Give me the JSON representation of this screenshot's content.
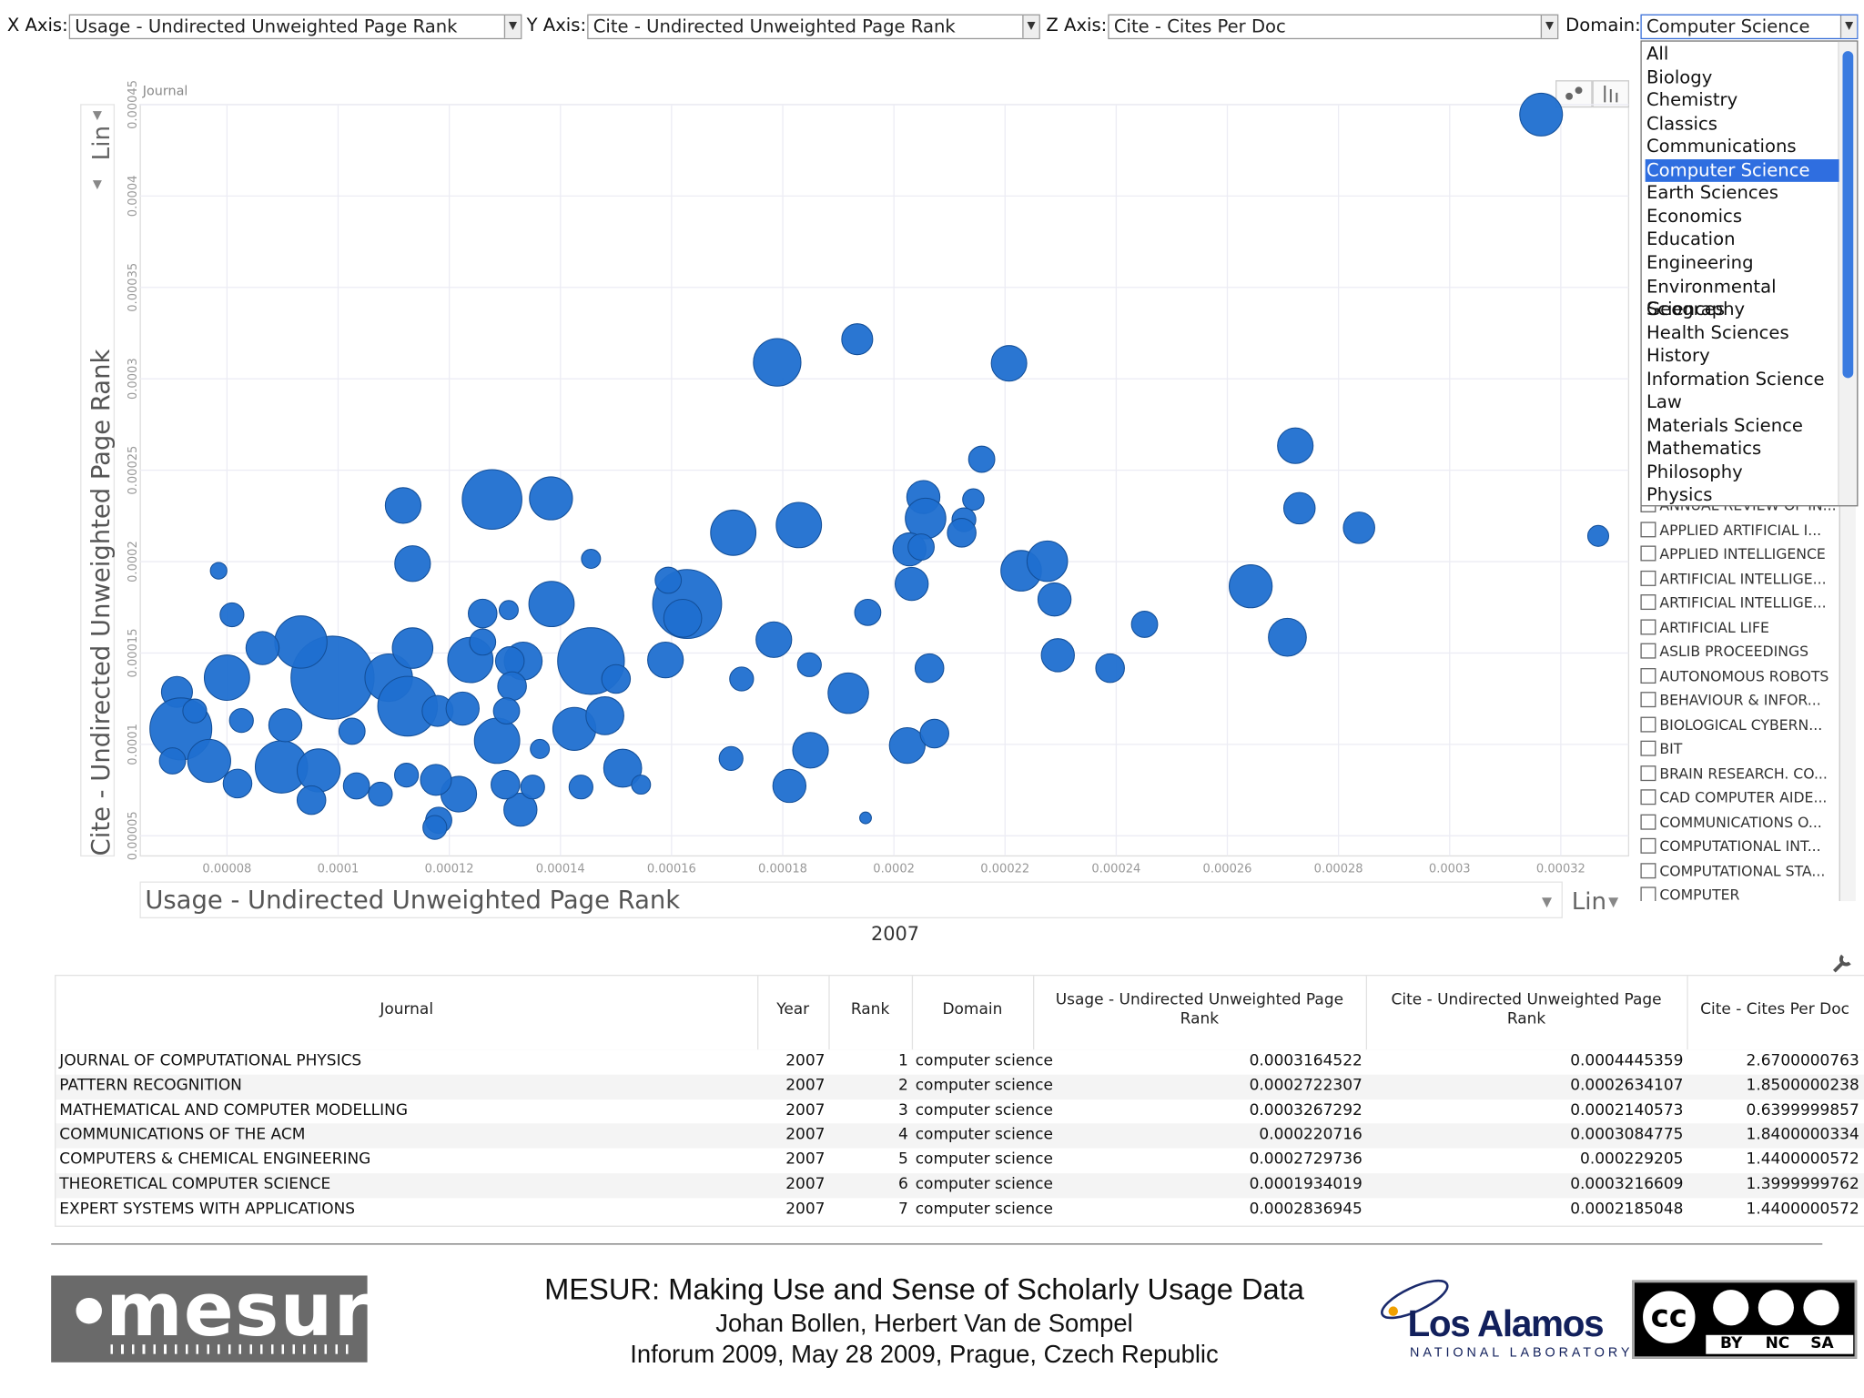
{
  "toolbar": {
    "x_label": "X Axis:",
    "x_value": "Usage - Undirected Unweighted Page Rank",
    "y_label": "Y Axis:",
    "y_value": "Cite - Undirected Unweighted Page Rank",
    "z_label": "Z Axis:",
    "z_value": "Cite - Cites Per Doc",
    "domain_label": "Domain:",
    "domain_value": "Computer Science"
  },
  "domain_dropdown": {
    "items": [
      "All",
      "Biology",
      "Chemistry",
      "Classics",
      "Communications",
      "Computer Science",
      "Earth Sciences",
      "Economics",
      "Education",
      "Engineering",
      "Environmental Sciences",
      "Geography",
      "Health Sciences",
      "History",
      "Information Science",
      "Law",
      "Materials Science",
      "Mathematics",
      "Philosophy",
      "Physics"
    ],
    "selected": 5
  },
  "chart_data": {
    "type": "bubble",
    "legend_title": "Journal",
    "x_label": "Usage - Undirected Unweighted Page Rank",
    "y_label": "Cite - Undirected Unweighted Page Rank",
    "x_scale": "Lin",
    "y_scale": "Lin",
    "year": "2007",
    "color": "#1f6fd0",
    "grid": true,
    "xlim": [
      6.44e-05,
      0.0003322
    ],
    "ylim": [
      3.9e-05,
      0.00045
    ],
    "xticks": [
      8e-05,
      0.0001,
      0.00012,
      0.00014,
      0.00016,
      0.00018,
      0.0002,
      0.00022,
      0.00024,
      0.00026,
      0.00028,
      0.0003,
      0.00032
    ],
    "yticks": [
      5e-05,
      0.0001,
      0.00015,
      0.0002,
      0.00025,
      0.0003,
      0.00035,
      0.0004,
      0.00045
    ],
    "x": [
      0.0003164522,
      0.000179,
      0.0001934019,
      0.000220716,
      0.0001277,
      0.0001383,
      0.0001117,
      0.0002158,
      0.0002722307,
      0.0002729736,
      0.0002836945,
      0.0003267292,
      0.0001829,
      0.0001711,
      0.0002053,
      0.0002057,
      0.0002143,
      0.0002126,
      0.0002122,
      0.0002028,
      0.0002049,
      0.0002032,
      0.0001134,
      7.85e-05,
      0.0001455,
      0.0001628,
      0.0001594,
      0.000162,
      0.0001384,
      0.000126,
      0.0001307,
      8.09e-05,
      0.0002229,
      0.0002276,
      0.0002289,
      0.0002642,
      0.0002451,
      0.0002708,
      0.0001953,
      0.0001784,
      0.0002295,
      0.0002389,
      0.0002064,
      0.0001589,
      0.0001848,
      0.0001726,
      0.0001918,
      0.0001455,
      0.0001333,
      0.0001238,
      0.0001309,
      0.0001313,
      9.9e-05,
      9.33e-05,
      8.64e-05,
      8e-05,
      7.1e-05,
      7.17e-05,
      7.68e-05,
      8.19e-05,
      8.98e-05,
      9.65e-05,
      9.52e-05,
      0.0001033,
      0.0001076,
      0.0001091,
      0.0001134,
      0.0001125,
      0.0001179,
      0.0001224,
      0.0001286,
      0.0001303,
      0.0001425,
      0.000148,
      0.00015,
      0.0001512,
      0.0001545,
      0.0001437,
      0.0001363,
      0.000185,
      0.0001707,
      0.0001812,
      0.0002024,
      0.0002073,
      0.0001949,
      0.0001328,
      0.0001301,
      0.000135,
      0.0001217,
      0.0001176,
      0.0001123,
      0.0001181,
      0.0001174,
      7.02e-05,
      7.42e-05,
      9.05e-05,
      0.0001025,
      0.000126,
      8.26e-05
    ],
    "values": [
      0.0004445359,
      0.000309,
      0.0003216609,
      0.0003084775,
      0.000234,
      0.0002346,
      0.0002307,
      0.000256,
      0.0002634107,
      0.000229205,
      0.0002185048,
      0.0002140573,
      0.00022,
      0.0002158,
      0.0002353,
      0.0002236,
      0.000234,
      0.0002229,
      0.0002158,
      0.0002067,
      0.000208,
      0.0001878,
      0.0001989,
      0.000195,
      0.0002015,
      0.0001768,
      0.0001898,
      0.000169,
      0.0001768,
      0.0001716,
      0.0001735,
      0.0001709,
      0.000195,
      0.0002002,
      0.0001793,
      0.0001865,
      0.0001657,
      0.0001586,
      0.0001722,
      0.0001573,
      0.0001488,
      0.0001417,
      0.0001417,
      0.0001462,
      0.0001436,
      0.0001358,
      0.000128,
      0.0001456,
      0.0001456,
      0.0001462,
      0.0001456,
      0.0001319,
      0.0001365,
      0.000156,
      0.0001527,
      0.0001365,
      0.0001287,
      0.0001085,
      9.1e-05,
      7.86e-05,
      8.77e-05,
      8.58e-05,
      6.95e-05,
      7.73e-05,
      7.28e-05,
      0.0001365,
      0.0001527,
      0.0001209,
      0.0001183,
      0.0001196,
      0.000102,
      0.0001183,
      0.0001085,
      0.0001157,
      0.0001358,
      8.7e-05,
      7.8e-05,
      7.67e-05,
      9.75e-05,
      9.68e-05,
      9.23e-05,
      7.73e-05,
      9.94e-05,
      0.0001059,
      5.98e-05,
      6.43e-05,
      7.8e-05,
      7.67e-05,
      7.28e-05,
      8.06e-05,
      8.32e-05,
      5.85e-05,
      5.46e-05,
      9.1e-05,
      0.0001183,
      0.0001105,
      0.0001072,
      0.000156,
      0.0001131
    ],
    "sizes": [
      2.67,
      3.3,
      1.4,
      1.84,
      5.2,
      2.7,
      1.86,
      1.0,
      1.85,
      1.44,
      1.44,
      0.64,
      3.0,
      3.0,
      1.6,
      2.4,
      0.67,
      0.83,
      1.2,
      1.6,
      1.0,
      1.6,
      1.86,
      0.4,
      0.53,
      6.95,
      1.0,
      2.1,
      3.0,
      1.2,
      0.53,
      0.83,
      2.4,
      2.4,
      1.6,
      2.7,
      1.0,
      2.1,
      1.0,
      1.86,
      1.6,
      1.2,
      1.2,
      1.86,
      0.83,
      0.83,
      2.4,
      6.5,
      2.1,
      3.0,
      1.2,
      1.2,
      10.1,
      4.0,
      1.6,
      3.0,
      1.4,
      5.6,
      2.7,
      1.2,
      4.0,
      2.7,
      1.2,
      1.0,
      0.83,
      3.3,
      2.4,
      5.2,
      1.4,
      1.6,
      3.0,
      1.0,
      2.7,
      2.1,
      1.2,
      2.1,
      0.53,
      0.83,
      0.53,
      1.86,
      0.83,
      1.6,
      1.86,
      1.2,
      0.2,
      1.6,
      1.2,
      0.83,
      1.86,
      1.4,
      0.83,
      1.0,
      0.83,
      1.0,
      0.83,
      1.6,
      1.0,
      1.0,
      0.83
    ]
  },
  "journal_list": [
    "ANNUAL REVIEW OF IN...",
    "APPLIED ARTIFICIAL I...",
    "APPLIED INTELLIGENCE",
    "ARTIFICIAL INTELLIGE...",
    "ARTIFICIAL INTELLIGE...",
    "ARTIFICIAL LIFE",
    "ASLIB PROCEEDINGS",
    "AUTONOMOUS ROBOTS",
    "BEHAVIOUR & INFOR...",
    "BIOLOGICAL CYBERN...",
    "BIT",
    "BRAIN RESEARCH. CO...",
    "CAD COMPUTER AIDE...",
    "COMMUNICATIONS O...",
    "COMPUTATIONAL INT...",
    "COMPUTATIONAL STA...",
    "COMPUTER"
  ],
  "table": {
    "headers": [
      "Journal",
      "Year",
      "Rank",
      "Domain",
      "Usage - Undirected Unweighted Page Rank",
      "Cite - Undirected Unweighted Page Rank",
      "Cite - Cites Per Doc"
    ],
    "rows": [
      [
        "JOURNAL OF COMPUTATIONAL PHYSICS",
        2007,
        1,
        "computer science",
        0.0003164522,
        0.0004445359,
        2.6700000763
      ],
      [
        "PATTERN RECOGNITION",
        2007,
        2,
        "computer science",
        0.0002722307,
        0.0002634107,
        1.8500000238
      ],
      [
        "MATHEMATICAL AND COMPUTER MODELLING",
        2007,
        3,
        "computer science",
        0.0003267292,
        0.0002140573,
        0.6399999857
      ],
      [
        "COMMUNICATIONS OF THE ACM",
        2007,
        4,
        "computer science",
        0.000220716,
        0.0003084775,
        1.8400000334
      ],
      [
        "COMPUTERS & CHEMICAL ENGINEERING",
        2007,
        5,
        "computer science",
        0.0002729736,
        0.000229205,
        1.4400000572
      ],
      [
        "THEORETICAL COMPUTER SCIENCE",
        2007,
        6,
        "computer science",
        0.0001934019,
        0.0003216609,
        1.3999999762
      ],
      [
        "EXPERT SYSTEMS WITH APPLICATIONS",
        2007,
        7,
        "computer science",
        0.0002836945,
        0.0002185048,
        1.4400000572
      ]
    ]
  },
  "footer": {
    "logo": "mesur",
    "title": "MESUR: Making Use and Sense of Scholarly Usage Data",
    "authors": "Johan Bollen, Herbert Van de Sompel",
    "event": "Inforum 2009, May 28 2009, Prague, Czech Republic",
    "lab_name": "Los Alamos",
    "lab_sub": "NATIONAL LABORATORY",
    "cc": "cc",
    "cc_by": "BY",
    "cc_nc": "NC",
    "cc_sa": "SA"
  }
}
